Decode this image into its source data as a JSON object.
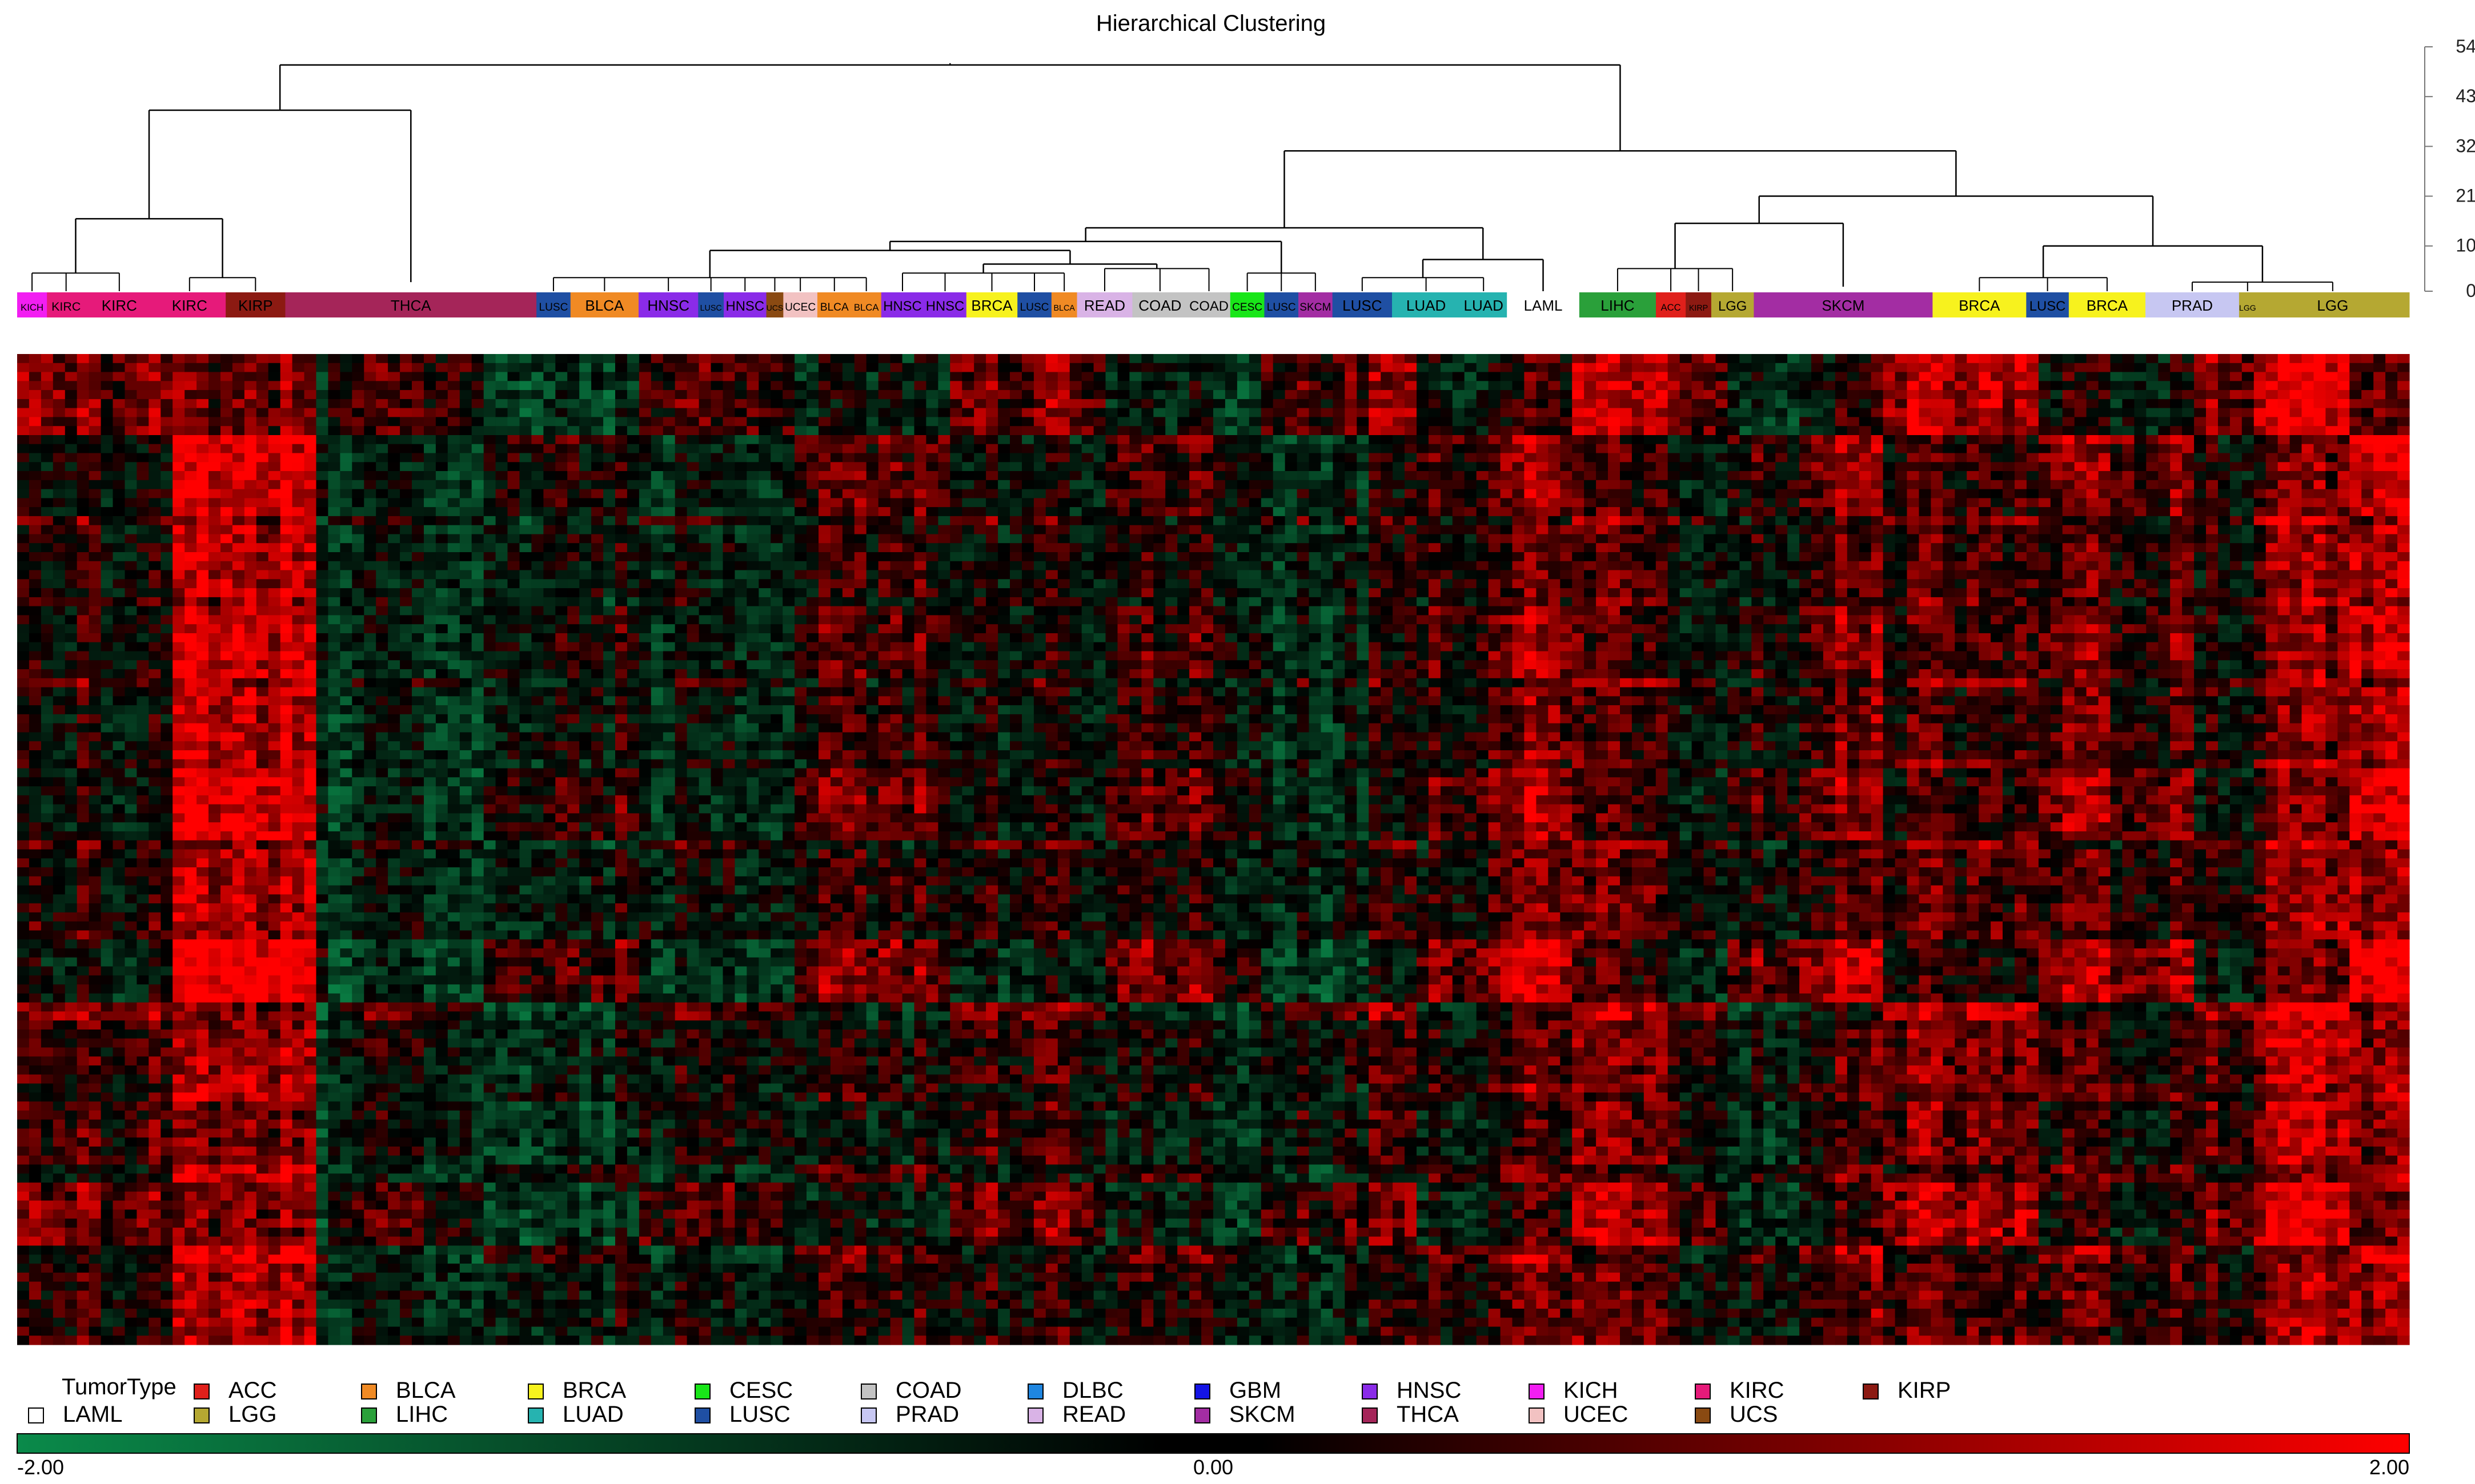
{
  "chart_data": {
    "type": "heatmap",
    "title": "Hierarchical Clustering",
    "dendrogram_axis": {
      "ticks": [
        "0",
        "10",
        "21",
        "32",
        "43",
        "54"
      ],
      "range": [
        0,
        54
      ]
    },
    "dendrogram_merges": [
      {
        "id": "root",
        "height": 50,
        "children": [
          "kidney_thca",
          "rest"
        ]
      },
      {
        "id": "kidney_thca",
        "height": 40,
        "children": [
          "kidney",
          "thca_grp"
        ]
      },
      {
        "id": "kidney",
        "height": 16,
        "children": [
          "kich_kirc",
          "kirc_kirp"
        ]
      },
      {
        "id": "rest",
        "height": 31,
        "children": [
          "mixA",
          "mixB"
        ]
      },
      {
        "id": "mixA",
        "height": 14,
        "children": [
          "squam_gi",
          "laml_grp"
        ]
      },
      {
        "id": "squam_gi",
        "height": 11,
        "children": [
          "squam",
          "lung_skcm"
        ]
      },
      {
        "id": "squam",
        "height": 9,
        "children": [
          "sq_left",
          "gi"
        ]
      },
      {
        "id": "gi",
        "height": 6,
        "children": [
          "sq_right",
          "read_coad"
        ]
      },
      {
        "id": "laml_grp",
        "height": 7,
        "children": [
          "lusc_luad",
          "laml"
        ]
      },
      {
        "id": "mixB",
        "height": 21,
        "children": [
          "liver_skcm",
          "brca_prad"
        ]
      },
      {
        "id": "liver_skcm",
        "height": 15,
        "children": [
          "lihc_kirp",
          "skcm"
        ]
      },
      {
        "id": "brca_prad",
        "height": 10,
        "children": [
          "brca_lusc",
          "prad_lgg"
        ]
      }
    ],
    "sample_bands": [
      {
        "label": "KICH",
        "type": "KICH",
        "w": 0.7
      },
      {
        "label": "KIRC",
        "type": "KIRC",
        "w": 0.9
      },
      {
        "label": "KIRC",
        "type": "KIRC",
        "w": 1.6
      },
      {
        "label": "KIRC",
        "type": "KIRC",
        "w": 1.7
      },
      {
        "label": "KIRP",
        "type": "KIRP",
        "w": 1.4
      },
      {
        "label": "THCA",
        "type": "THCA",
        "w": 5.9
      },
      {
        "label": "LUSC",
        "type": "LUSC",
        "w": 0.8
      },
      {
        "label": "BLCA",
        "type": "BLCA",
        "w": 1.6
      },
      {
        "label": "HNSC",
        "type": "HNSC",
        "w": 1.4
      },
      {
        "label": "LUSC",
        "type": "LUSC",
        "w": 0.6
      },
      {
        "label": "HNSC",
        "type": "HNSC",
        "w": 1.0
      },
      {
        "label": "UCS",
        "type": "UCS",
        "w": 0.4
      },
      {
        "label": "UCEC",
        "type": "UCEC",
        "w": 0.8
      },
      {
        "label": "BLCA",
        "type": "BLCA",
        "w": 0.8
      },
      {
        "label": "BLCA",
        "type": "BLCA",
        "w": 0.7
      },
      {
        "label": "HNSC",
        "type": "HNSC",
        "w": 1.0
      },
      {
        "label": "HNSC",
        "type": "HNSC",
        "w": 1.0
      },
      {
        "label": "BRCA",
        "type": "BRCA",
        "w": 1.2
      },
      {
        "label": "LUSC",
        "type": "LUSC",
        "w": 0.8
      },
      {
        "label": "BLCA",
        "type": "BLCA",
        "w": 0.6
      },
      {
        "label": "READ",
        "type": "READ",
        "w": 1.3
      },
      {
        "label": "COAD",
        "type": "COAD",
        "w": 1.3
      },
      {
        "label": "COAD",
        "type": "COAD",
        "w": 1.0
      },
      {
        "label": "CESC",
        "type": "CESC",
        "w": 0.8
      },
      {
        "label": "LUSC",
        "type": "LUSC",
        "w": 0.8
      },
      {
        "label": "SKCM",
        "type": "SKCM",
        "w": 0.8
      },
      {
        "label": "LUSC",
        "type": "LUSC",
        "w": 1.4
      },
      {
        "label": "LUAD",
        "type": "LUAD",
        "w": 1.6
      },
      {
        "label": "LUAD",
        "type": "LUAD",
        "w": 1.1
      },
      {
        "label": "LAML",
        "type": "LAML",
        "w": 1.7
      },
      {
        "label": "LIHC",
        "type": "LIHC",
        "w": 1.8
      },
      {
        "label": "ACC",
        "type": "ACC",
        "w": 0.7
      },
      {
        "label": "KIRP",
        "type": "KIRP",
        "w": 0.6
      },
      {
        "label": "LGG",
        "type": "LGG",
        "w": 1.0
      },
      {
        "label": "SKCM",
        "type": "SKCM",
        "w": 4.2
      },
      {
        "label": "BRCA",
        "type": "BRCA",
        "w": 2.2
      },
      {
        "label": "LUSC",
        "type": "LUSC",
        "w": 1.0
      },
      {
        "label": "BRCA",
        "type": "BRCA",
        "w": 1.8
      },
      {
        "label": "PRAD",
        "type": "PRAD",
        "w": 2.2
      },
      {
        "label": "LGG",
        "type": "LGG",
        "w": 0.4
      },
      {
        "label": "LGG",
        "type": "LGG",
        "w": 3.6
      }
    ],
    "heatmap_value_range": [
      -2.0,
      2.0
    ],
    "column_cluster_mean_expression": [
      0.3,
      1.8,
      -0.5,
      -0.4,
      -0.2,
      0.1,
      0.3,
      0.2,
      -0.3,
      0.2,
      1.2,
      0.0,
      0.9,
      0.7,
      0.5,
      1.6
    ],
    "row_block_mean_expression": [
      0.8,
      0.5,
      -0.2,
      0.4,
      -0.3,
      0.6,
      -0.1,
      0.9,
      0.2,
      -0.4,
      0.7,
      0.1
    ],
    "legend": {
      "title": "TumorType",
      "entries": [
        {
          "label": "ACC",
          "color": "#e0201b"
        },
        {
          "label": "BLCA",
          "color": "#f08a24"
        },
        {
          "label": "BRCA",
          "color": "#f7f21e"
        },
        {
          "label": "CESC",
          "color": "#19e619"
        },
        {
          "label": "COAD",
          "color": "#c3c3c3"
        },
        {
          "label": "DLBC",
          "color": "#1f86e0"
        },
        {
          "label": "GBM",
          "color": "#1414e6"
        },
        {
          "label": "HNSC",
          "color": "#8a2be8"
        },
        {
          "label": "KICH",
          "color": "#f21ef2"
        },
        {
          "label": "KIRC",
          "color": "#e61a7a"
        },
        {
          "label": "KIRP",
          "color": "#8c1a12"
        },
        {
          "label": "LAML",
          "color": "#ffffff"
        },
        {
          "label": "LGG",
          "color": "#b5a832"
        },
        {
          "label": "LIHC",
          "color": "#2aa03a"
        },
        {
          "label": "LUAD",
          "color": "#26b3b0"
        },
        {
          "label": "LUSC",
          "color": "#1f4fa3"
        },
        {
          "label": "PRAD",
          "color": "#c7c7f2"
        },
        {
          "label": "READ",
          "color": "#d9b3e6"
        },
        {
          "label": "SKCM",
          "color": "#a32da3"
        },
        {
          "label": "THCA",
          "color": "#a52559"
        },
        {
          "label": "UCEC",
          "color": "#f2c2c2"
        },
        {
          "label": "UCS",
          "color": "#8a4a12"
        }
      ]
    },
    "colorbar": {
      "min_label": "-2.00",
      "mid_label": "0.00",
      "max_label": "2.00",
      "low_color": "#0a8a4a",
      "mid_color": "#000000",
      "high_color": "#ff0000"
    }
  }
}
